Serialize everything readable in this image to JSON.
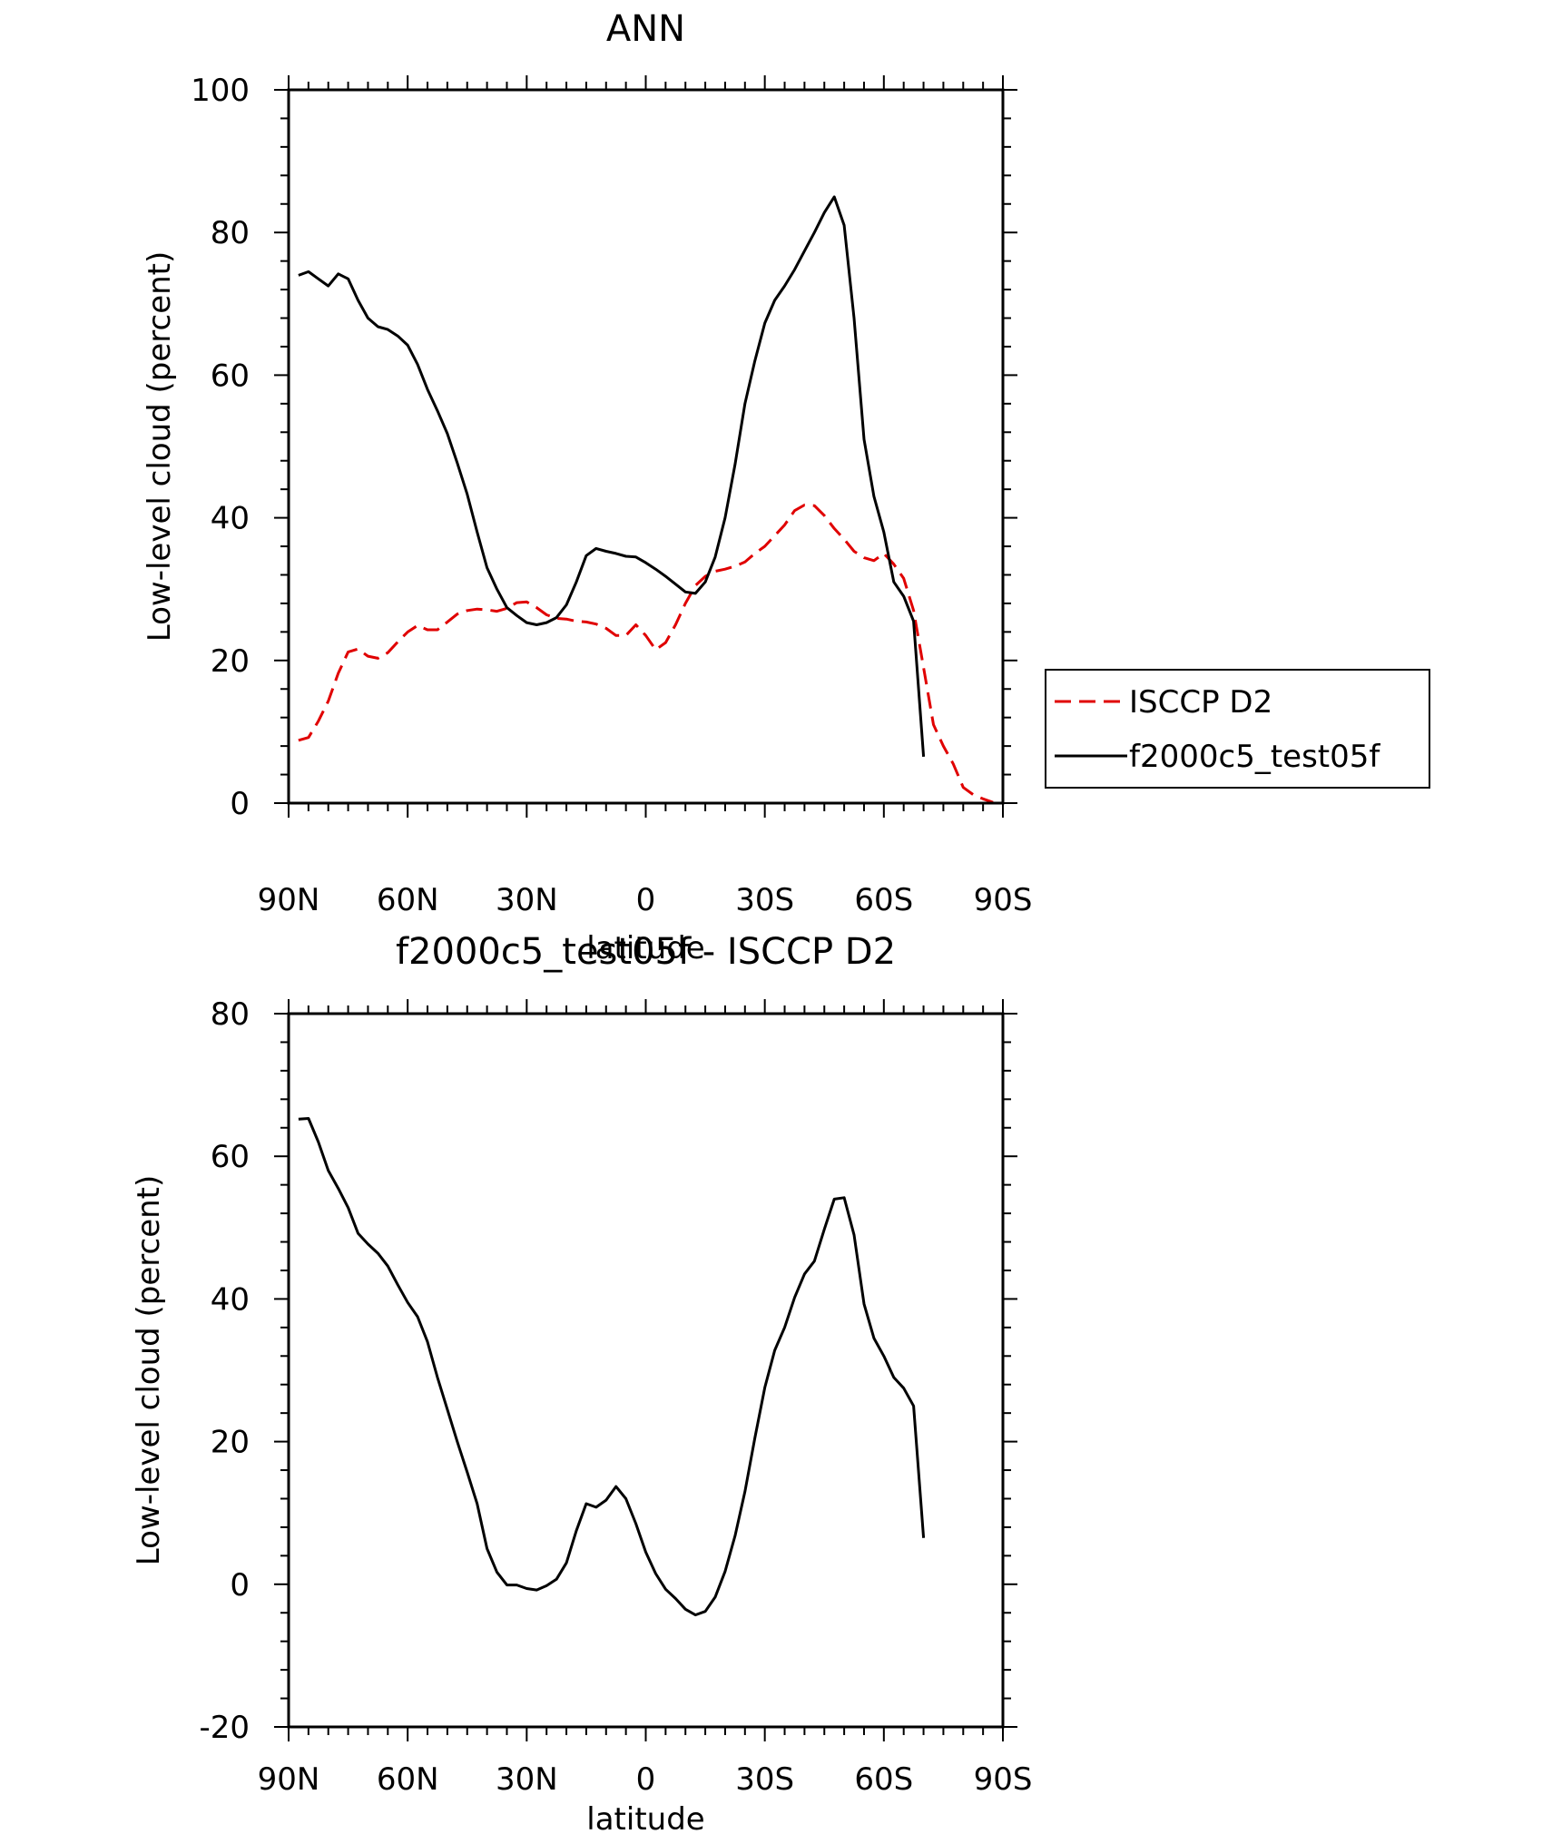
{
  "chart_data": [
    {
      "type": "line",
      "title": "ANN",
      "xlabel": "latitude",
      "ylabel": "Low-level cloud (percent)",
      "xlim": [
        90,
        -90
      ],
      "ylim": [
        0,
        100
      ],
      "xticks": [
        {
          "value": 90,
          "label": "90N"
        },
        {
          "value": 60,
          "label": "60N"
        },
        {
          "value": 30,
          "label": "30N"
        },
        {
          "value": 0,
          "label": "0"
        },
        {
          "value": -30,
          "label": "30S"
        },
        {
          "value": -60,
          "label": "60S"
        },
        {
          "value": -90,
          "label": "90S"
        }
      ],
      "yticks": [
        {
          "value": 0,
          "label": "0"
        },
        {
          "value": 20,
          "label": "20"
        },
        {
          "value": 40,
          "label": "40"
        },
        {
          "value": 60,
          "label": "60"
        },
        {
          "value": 80,
          "label": "80"
        },
        {
          "value": 100,
          "label": "100"
        }
      ],
      "legend": "right",
      "series": [
        {
          "name": "ISCCP D2",
          "color": "#e00000",
          "dash": "dashed",
          "points": [
            [
              87.5,
              8.8
            ],
            [
              85,
              9.2
            ],
            [
              82.5,
              11.5
            ],
            [
              80,
              14.3
            ],
            [
              77.5,
              18.2
            ],
            [
              75,
              21.2
            ],
            [
              72.5,
              21.6
            ],
            [
              70,
              20.6
            ],
            [
              67.5,
              20.3
            ],
            [
              65,
              21.1
            ],
            [
              62.5,
              22.6
            ],
            [
              60,
              24
            ],
            [
              57.5,
              24.9
            ],
            [
              55,
              24.3
            ],
            [
              52.5,
              24.3
            ],
            [
              50,
              25.4
            ],
            [
              47.5,
              26.5
            ],
            [
              45,
              27
            ],
            [
              42.5,
              27.2
            ],
            [
              40,
              27.1
            ],
            [
              37.5,
              26.9
            ],
            [
              35,
              27.3
            ],
            [
              32.5,
              28.1
            ],
            [
              30,
              28.2
            ],
            [
              27.5,
              27.4
            ],
            [
              25,
              26.4
            ],
            [
              22.5,
              25.9
            ],
            [
              20,
              25.8
            ],
            [
              17.5,
              25.5
            ],
            [
              15,
              25.4
            ],
            [
              12.5,
              25.1
            ],
            [
              10,
              24.5
            ],
            [
              7.5,
              23.5
            ],
            [
              5,
              23.5
            ],
            [
              2.5,
              25
            ],
            [
              0,
              23.5
            ],
            [
              -2.5,
              21.5
            ],
            [
              -5,
              22.5
            ],
            [
              -7.5,
              25
            ],
            [
              -10,
              28
            ],
            [
              -12.5,
              30.5
            ],
            [
              -15,
              31.8
            ],
            [
              -17.5,
              32.5
            ],
            [
              -20,
              32.8
            ],
            [
              -22.5,
              33.2
            ],
            [
              -25,
              33.8
            ],
            [
              -27.5,
              35
            ],
            [
              -30,
              36
            ],
            [
              -32.5,
              37.5
            ],
            [
              -35,
              39
            ],
            [
              -37.5,
              41
            ],
            [
              -40,
              41.8
            ],
            [
              -42.5,
              41.7
            ],
            [
              -45,
              40.3
            ],
            [
              -47.5,
              38.5
            ],
            [
              -50,
              37
            ],
            [
              -52.5,
              35.3
            ],
            [
              -55,
              34.4
            ],
            [
              -57.5,
              34
            ],
            [
              -60,
              35
            ],
            [
              -62.5,
              33.5
            ],
            [
              -65,
              31.5
            ],
            [
              -67.5,
              27
            ],
            [
              -70,
              19
            ],
            [
              -72.5,
              11
            ],
            [
              -75,
              8
            ],
            [
              -77.5,
              5.5
            ],
            [
              -80,
              2.2
            ],
            [
              -82.5,
              1.2
            ],
            [
              -85,
              0.6
            ],
            [
              -87.5,
              0.1
            ]
          ]
        },
        {
          "name": "f2000c5_test05f",
          "color": "#000000",
          "dash": "solid",
          "points": [
            [
              87.5,
              74
            ],
            [
              85,
              74.5
            ],
            [
              82.5,
              73.5
            ],
            [
              80,
              72.5
            ],
            [
              77.5,
              74.2
            ],
            [
              75,
              73.5
            ],
            [
              72.5,
              70.5
            ],
            [
              70,
              68
            ],
            [
              67.5,
              66.8
            ],
            [
              65,
              66.4
            ],
            [
              62.5,
              65.5
            ],
            [
              60,
              64.2
            ],
            [
              57.5,
              61.5
            ],
            [
              55,
              58
            ],
            [
              52.5,
              55
            ],
            [
              50,
              51.8
            ],
            [
              47.5,
              47.7
            ],
            [
              45,
              43.3
            ],
            [
              42.5,
              38
            ],
            [
              40,
              33
            ],
            [
              37.5,
              30
            ],
            [
              35,
              27.4
            ],
            [
              32.5,
              26.3
            ],
            [
              30,
              25.3
            ],
            [
              27.5,
              25
            ],
            [
              25,
              25.3
            ],
            [
              22.5,
              26
            ],
            [
              20,
              27.8
            ],
            [
              17.5,
              31
            ],
            [
              15,
              34.7
            ],
            [
              12.5,
              35.7
            ],
            [
              10,
              35.3
            ],
            [
              7.5,
              35
            ],
            [
              5,
              34.6
            ],
            [
              2.5,
              34.5
            ],
            [
              0,
              33.7
            ],
            [
              -2.5,
              32.8
            ],
            [
              -5,
              31.8
            ],
            [
              -7.5,
              30.7
            ],
            [
              -10,
              29.6
            ],
            [
              -12.5,
              29.4
            ],
            [
              -15,
              31
            ],
            [
              -17.5,
              34.5
            ],
            [
              -20,
              40
            ],
            [
              -22.5,
              47.5
            ],
            [
              -25,
              56
            ],
            [
              -27.5,
              62
            ],
            [
              -30,
              67.3
            ],
            [
              -32.5,
              70.5
            ],
            [
              -35,
              72.5
            ],
            [
              -37.5,
              74.8
            ],
            [
              -40,
              77.4
            ],
            [
              -42.5,
              80
            ],
            [
              -45,
              82.8
            ],
            [
              -47.5,
              85
            ],
            [
              -50,
              81
            ],
            [
              -52.5,
              68
            ],
            [
              -55,
              51
            ],
            [
              -57.5,
              43
            ],
            [
              -60,
              38
            ],
            [
              -62.5,
              31
            ],
            [
              -65,
              29
            ],
            [
              -67.5,
              25.5
            ],
            [
              -70,
              6.5
            ]
          ]
        }
      ]
    },
    {
      "type": "line",
      "title": "f2000c5_test05f - ISCCP D2",
      "xlabel": "latitude",
      "ylabel": "Low-level cloud (percent)",
      "xlim": [
        90,
        -90
      ],
      "ylim": [
        -20,
        80
      ],
      "xticks": [
        {
          "value": 90,
          "label": "90N"
        },
        {
          "value": 60,
          "label": "60N"
        },
        {
          "value": 30,
          "label": "30N"
        },
        {
          "value": 0,
          "label": "0"
        },
        {
          "value": -30,
          "label": "30S"
        },
        {
          "value": -60,
          "label": "60S"
        },
        {
          "value": -90,
          "label": "90S"
        }
      ],
      "yticks": [
        {
          "value": -20,
          "label": "-20"
        },
        {
          "value": 0,
          "label": "0"
        },
        {
          "value": 20,
          "label": "20"
        },
        {
          "value": 40,
          "label": "40"
        },
        {
          "value": 60,
          "label": "60"
        },
        {
          "value": 80,
          "label": "80"
        }
      ],
      "series": [
        {
          "color": "#000000",
          "dash": "solid",
          "points": [
            [
              87.5,
              65.2
            ],
            [
              85,
              65.3
            ],
            [
              82.5,
              62
            ],
            [
              80,
              58
            ],
            [
              77.5,
              55.5
            ],
            [
              75,
              52.8
            ],
            [
              72.5,
              49.2
            ],
            [
              70,
              47.7
            ],
            [
              67.5,
              46.4
            ],
            [
              65,
              44.6
            ],
            [
              62.5,
              42
            ],
            [
              60,
              39.5
            ],
            [
              57.5,
              37.5
            ],
            [
              55,
              34
            ],
            [
              52.5,
              29
            ],
            [
              50,
              24.5
            ],
            [
              47.5,
              20
            ],
            [
              45,
              15.7
            ],
            [
              42.5,
              11.3
            ],
            [
              40,
              5
            ],
            [
              37.5,
              1.7
            ],
            [
              35,
              -0.1
            ],
            [
              32.5,
              -0.1
            ],
            [
              30,
              -0.6
            ],
            [
              27.5,
              -0.8
            ],
            [
              25,
              -0.2
            ],
            [
              22.5,
              0.7
            ],
            [
              20,
              3
            ],
            [
              17.5,
              7.5
            ],
            [
              15,
              11.3
            ],
            [
              12.5,
              10.8
            ],
            [
              10,
              11.8
            ],
            [
              7.5,
              13.7
            ],
            [
              5,
              12
            ],
            [
              2.5,
              8.5
            ],
            [
              0,
              4.5
            ],
            [
              -2.5,
              1.5
            ],
            [
              -5,
              -0.7
            ],
            [
              -7.5,
              -2
            ],
            [
              -10,
              -3.5
            ],
            [
              -12.5,
              -4.3
            ],
            [
              -15,
              -3.8
            ],
            [
              -17.5,
              -1.8
            ],
            [
              -20,
              1.8
            ],
            [
              -22.5,
              6.8
            ],
            [
              -25,
              13
            ],
            [
              -27.5,
              20.5
            ],
            [
              -30,
              27.6
            ],
            [
              -32.5,
              32.8
            ],
            [
              -35,
              36
            ],
            [
              -37.5,
              40.2
            ],
            [
              -40,
              43.5
            ],
            [
              -42.5,
              45.3
            ],
            [
              -45,
              49.8
            ],
            [
              -47.5,
              54
            ],
            [
              -50,
              54.2
            ],
            [
              -52.5,
              49
            ],
            [
              -55,
              39.3
            ],
            [
              -57.5,
              34.5
            ],
            [
              -60,
              32
            ],
            [
              -62.5,
              29
            ],
            [
              -65,
              27.5
            ],
            [
              -67.5,
              25
            ],
            [
              -70,
              6.5
            ]
          ]
        }
      ]
    }
  ]
}
